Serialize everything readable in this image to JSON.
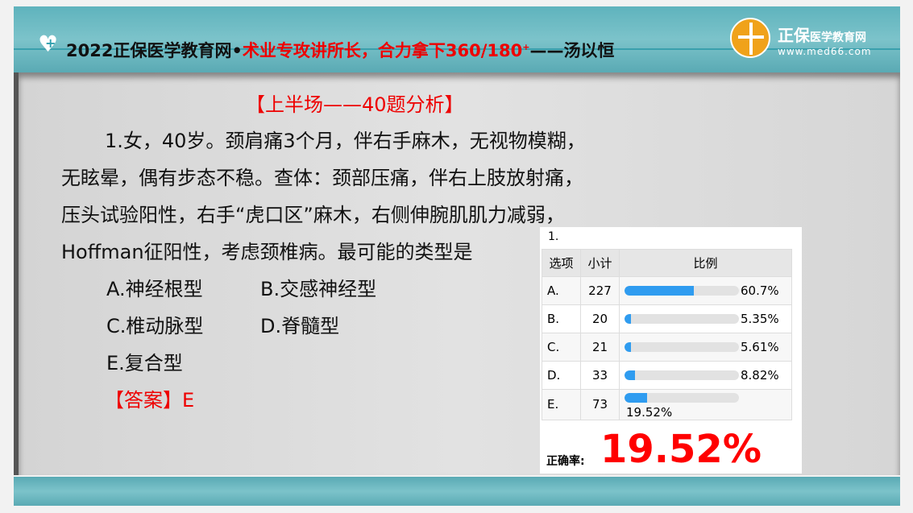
{
  "header": {
    "title_prefix": "2022正保医学教育网•",
    "title_red": "术业专攻讲所长，合力拿下360/180",
    "title_sup": "+",
    "title_suffix": "——汤以恒",
    "brand": "正保",
    "brand_small": "医学教育网",
    "url": "www.med66.com"
  },
  "section": "【上半场——40题分析】",
  "question": {
    "lines": [
      "1.女，40岁。颈肩痛3个月，伴右手麻木，无视物模糊，",
      "无眩晕，偶有步态不稳。查体：颈部压痛，伴右上肢放射痛，",
      "压头试验阳性，右手“虎口区”麻木，右侧伸腕肌肌力减弱，",
      "Hoffman征阳性，考虑颈椎病。最可能的类型是"
    ],
    "options": [
      "A.神经根型",
      "B.交感神经型",
      "C.椎动脉型",
      "D.脊髓型",
      "E.复合型"
    ],
    "answer": "【答案】E"
  },
  "stats": {
    "number": "1.",
    "headers": [
      "选项",
      "小计",
      "比例"
    ],
    "rows": [
      {
        "option": "A.",
        "count": "227",
        "pct": "60.7%",
        "value": 60.7
      },
      {
        "option": "B.",
        "count": "20",
        "pct": "5.35%",
        "value": 5.35
      },
      {
        "option": "C.",
        "count": "21",
        "pct": "5.61%",
        "value": 5.61
      },
      {
        "option": "D.",
        "count": "33",
        "pct": "8.82%",
        "value": 8.82
      },
      {
        "option": "E.",
        "count": "73",
        "pct": "19.52%",
        "value": 19.52
      }
    ],
    "rate_label": "正确率:",
    "rate": "19.52%",
    "bar_color": "#2f9cf0"
  }
}
